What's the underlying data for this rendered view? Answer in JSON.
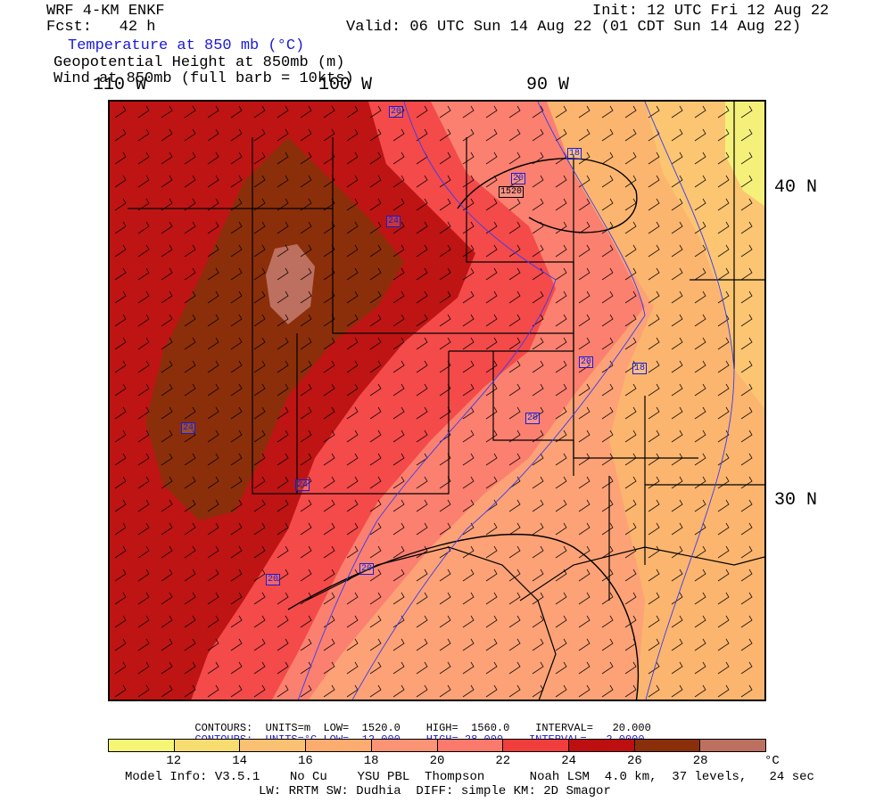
{
  "header": {
    "model": "WRF 4-KM ENKF",
    "fcst": "Fcst:   42 h",
    "init": "Init: 12 UTC Fri 12 Aug 22",
    "valid": "Valid: 06 UTC Sun 14 Aug 22 (01 CDT Sun 14 Aug 22)",
    "line_temp": "Temperature at 850 mb (°C)",
    "line_height": "Geopotential Height at 850mb (m)",
    "line_wind": "Wind at 850mb (full barb = 10kts)"
  },
  "axes": {
    "lon_labels": [
      "110 W",
      "100 W",
      "90 W"
    ],
    "lat_labels": [
      "40 N",
      "30 N"
    ]
  },
  "contour_labels": {
    "temp": [
      "20",
      "18",
      "20",
      "24",
      "24",
      "24",
      "20",
      "18",
      "20",
      "20",
      "20",
      "20"
    ],
    "height": "1520"
  },
  "legend": {
    "row1": {
      "contours": "CONTOURS:",
      "units": "UNITS=m",
      "low_label": "LOW=",
      "low": "1520.0",
      "high_label": "HIGH=",
      "high": "1560.0",
      "interval_label": "INTERVAL=",
      "interval": "20.000"
    },
    "row2": {
      "contours": "CONTOURS:",
      "units": "UNITS=°C",
      "low_label": "LOW=",
      "low": "12.000",
      "high_label": "HIGH=",
      "high": "28.000",
      "interval_label": "INTERVAL=",
      "interval": "2.0000"
    }
  },
  "colorbar": {
    "colors": [
      "#f5f576",
      "#f7dd6f",
      "#fbc172",
      "#fcac6e",
      "#fb9474",
      "#fb7a6c",
      "#f23d3d",
      "#bd0f0f",
      "#8b2f0a",
      "#bd7060"
    ],
    "ticks": [
      "12",
      "14",
      "16",
      "18",
      "20",
      "22",
      "24",
      "26",
      "28"
    ],
    "unit": "°C"
  },
  "footer": {
    "line1": "Model Info: V3.5.1    No Cu    YSU PBL  Thompson      Noah LSM  4.0 km,  37 levels,   24 sec",
    "line2": "LW: RRTM SW: Dudhia  DIFF: simple KM: 2D Smagor"
  },
  "colors": {
    "t12": "#f5f576",
    "t14": "#f7dd6f",
    "t16": "#fbc172",
    "t18": "#fcac6e",
    "t20": "#fb9474",
    "t22": "#fb7a6c",
    "t24": "#f23d3d",
    "t26": "#bd0f0f",
    "t28": "#8b2f0a",
    "t30": "#bd7060"
  }
}
